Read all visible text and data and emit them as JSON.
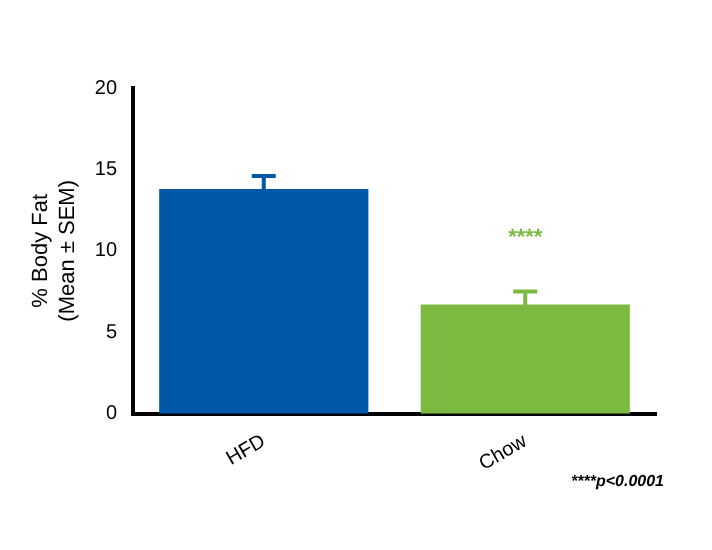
{
  "chart_data": {
    "type": "bar",
    "ylabel": "% Body Fat\n(Mean ± SEM)",
    "categories": [
      "HFD",
      "Chow"
    ],
    "values": [
      13.8,
      6.7
    ],
    "errors": [
      0.8,
      0.8
    ],
    "colors": [
      "#0057a8",
      "#7cb940"
    ],
    "ylim": [
      0,
      20
    ],
    "yticks": [
      0,
      5,
      10,
      15,
      20
    ],
    "grid": false,
    "legend": false,
    "annotations": [
      "****",
      "****p<0.0001"
    ]
  }
}
